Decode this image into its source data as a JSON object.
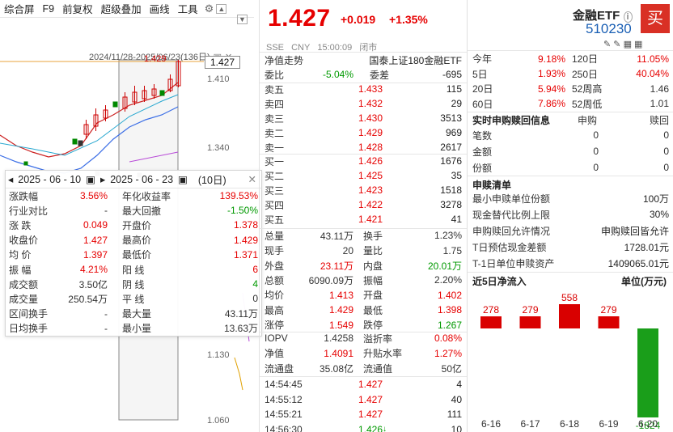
{
  "toolbar": {
    "items": [
      "综合屏",
      "F9",
      "前复权",
      "超级叠加",
      "画线",
      "工具"
    ],
    "icon_gear": "gear-icon",
    "icon_up": "arrow-up-icon",
    "icon_down": "arrow-down-icon"
  },
  "chart": {
    "range_text": "2024/11/28-2025/06/23(136日)",
    "high_marker": "1.429",
    "last_price": "1.427",
    "ticks": [
      "1.410",
      "1.340",
      "1.130",
      "1.060"
    ]
  },
  "popup": {
    "start_date": "2025 - 06 - 10",
    "end_date": "2025 - 06 - 23",
    "days": "(10日)",
    "rows": [
      {
        "l": "涨跌幅",
        "v": "3.56%",
        "vc": "red",
        "l2": "年化收益率",
        "v2": "139.53%",
        "v2c": "red"
      },
      {
        "l": "行业对比",
        "v": "-",
        "vc": "",
        "l2": "最大回撤",
        "v2": "-1.50%",
        "v2c": "green"
      },
      {
        "l": "涨 跌",
        "v": "0.049",
        "vc": "red",
        "l2": "开盘价",
        "v2": "1.378",
        "v2c": "red"
      },
      {
        "l": "收盘价",
        "v": "1.427",
        "vc": "red",
        "l2": "最高价",
        "v2": "1.429",
        "v2c": "red"
      },
      {
        "l": "均 价",
        "v": "1.397",
        "vc": "red",
        "l2": "最低价",
        "v2": "1.371",
        "v2c": "red"
      },
      {
        "l": "振 幅",
        "v": "4.21%",
        "vc": "red",
        "l2": "阳 线",
        "v2": "6",
        "v2c": "red"
      },
      {
        "l": "成交额",
        "v": "3.50亿",
        "vc": "",
        "l2": "阴 线",
        "v2": "4",
        "v2c": "green"
      },
      {
        "l": "成交量",
        "v": "250.54万",
        "vc": "",
        "l2": "平 线",
        "v2": "0",
        "v2c": ""
      },
      {
        "l": "区间换手",
        "v": "-",
        "vc": "",
        "l2": "最大量",
        "v2": "43.11万",
        "v2c": ""
      },
      {
        "l": "日均换手",
        "v": "-",
        "vc": "",
        "l2": "最小量",
        "v2": "13.63万",
        "v2c": ""
      }
    ]
  },
  "quote": {
    "price": "1.427",
    "change": "+0.019",
    "change_pct": "+1.35%",
    "sub": [
      "SSE",
      "CNY",
      "15:00:09",
      "闭市"
    ],
    "nav_label": "净值走势",
    "fund_name": "国泰上证180金融ETF",
    "wei_bi_label": "委比",
    "wei_bi": "-5.04%",
    "wei_cha_label": "委差",
    "wei_cha": "-695",
    "asks": [
      {
        "l": "卖五",
        "p": "1.433",
        "v": "115"
      },
      {
        "l": "卖四",
        "p": "1.432",
        "v": "29"
      },
      {
        "l": "卖三",
        "p": "1.430",
        "v": "3513"
      },
      {
        "l": "卖二",
        "p": "1.429",
        "v": "969"
      },
      {
        "l": "卖一",
        "p": "1.428",
        "v": "2617"
      }
    ],
    "bids": [
      {
        "l": "买一",
        "p": "1.426",
        "v": "1676"
      },
      {
        "l": "买二",
        "p": "1.425",
        "v": "35"
      },
      {
        "l": "买三",
        "p": "1.423",
        "v": "1518"
      },
      {
        "l": "买四",
        "p": "1.422",
        "v": "3278"
      },
      {
        "l": "买五",
        "p": "1.421",
        "v": "41"
      }
    ],
    "stats": [
      {
        "a": "总量",
        "b": "43.11万",
        "bc": "",
        "c": "换手",
        "d": "1.23%",
        "dc": ""
      },
      {
        "a": "现手",
        "b": "20",
        "bc": "",
        "c": "量比",
        "d": "1.75",
        "dc": ""
      },
      {
        "a": "外盘",
        "b": "23.11万",
        "bc": "red",
        "c": "内盘",
        "d": "20.01万",
        "dc": "green"
      },
      {
        "a": "总额",
        "b": "6090.09万",
        "bc": "",
        "c": "振幅",
        "d": "2.20%",
        "dc": ""
      },
      {
        "a": "均价",
        "b": "1.413",
        "bc": "red",
        "c": "开盘",
        "d": "1.402",
        "dc": "red"
      },
      {
        "a": "最高",
        "b": "1.429",
        "bc": "red",
        "c": "最低",
        "d": "1.398",
        "dc": "red"
      },
      {
        "a": "涨停",
        "b": "1.549",
        "bc": "red",
        "c": "跌停",
        "d": "1.267",
        "dc": "green"
      }
    ],
    "iopv": [
      {
        "a": "IOPV",
        "b": "1.4258",
        "bc": "",
        "c": "溢折率",
        "d": "0.08%",
        "dc": "red"
      },
      {
        "a": "净值",
        "b": "1.4091",
        "bc": "red",
        "c": "升贴水率",
        "d": "1.27%",
        "dc": "red"
      },
      {
        "a": "流通盘",
        "b": "35.08亿",
        "bc": "",
        "c": "流通值",
        "d": "50亿",
        "dc": ""
      }
    ],
    "ticks": [
      {
        "t": "14:54:45",
        "p": "1.427",
        "v": "4",
        "vc": "red"
      },
      {
        "t": "14:55:12",
        "p": "1.427",
        "v": "40",
        "vc": "red"
      },
      {
        "t": "14:55:21",
        "p": "1.427",
        "v": "111",
        "vc": "red"
      },
      {
        "t": "14:56:30",
        "p": "1.426",
        "v": "10",
        "vc": "green",
        "arrow": "↓"
      }
    ]
  },
  "right": {
    "name": "金融ETF",
    "code": "510230",
    "buy": "买",
    "perf": [
      {
        "a": "今年",
        "b": "9.18%",
        "c": "120日",
        "d": "11.05%"
      },
      {
        "a": "5日",
        "b": "1.93%",
        "c": "250日",
        "d": "40.04%"
      },
      {
        "a": "20日",
        "b": "5.94%",
        "c": "52周高",
        "d": "1.46"
      },
      {
        "a": "60日",
        "b": "7.86%",
        "c": "52周低",
        "d": "1.01"
      }
    ],
    "redeem_title": "实时申购赎回信息",
    "redeem_cols": [
      "申购",
      "赎回"
    ],
    "redeem_rows": [
      {
        "a": "笔数",
        "b": "0",
        "c": "0"
      },
      {
        "a": "金额",
        "b": "0",
        "c": "0"
      },
      {
        "a": "份额",
        "b": "0",
        "c": "0"
      }
    ],
    "list_title": "申赎清单",
    "list_rows": [
      {
        "a": "最小申赎单位份额",
        "b": "100万"
      },
      {
        "a": "现金替代比例上限",
        "b": "30%"
      },
      {
        "a": "申购赎回允许情况",
        "b": "申购赎回皆允许"
      },
      {
        "a": "T日预估现金差额",
        "b": "1728.01元"
      },
      {
        "a": "T-1日单位申赎资产",
        "b": "1409065.01元"
      }
    ]
  },
  "chart_data": {
    "type": "bar",
    "title": "近5日净流入",
    "ylabel": "单位(万元)",
    "categories": [
      "6-16",
      "6-17",
      "6-18",
      "6-19",
      "6-20"
    ],
    "values": [
      278,
      279,
      558,
      279,
      -1824
    ]
  }
}
